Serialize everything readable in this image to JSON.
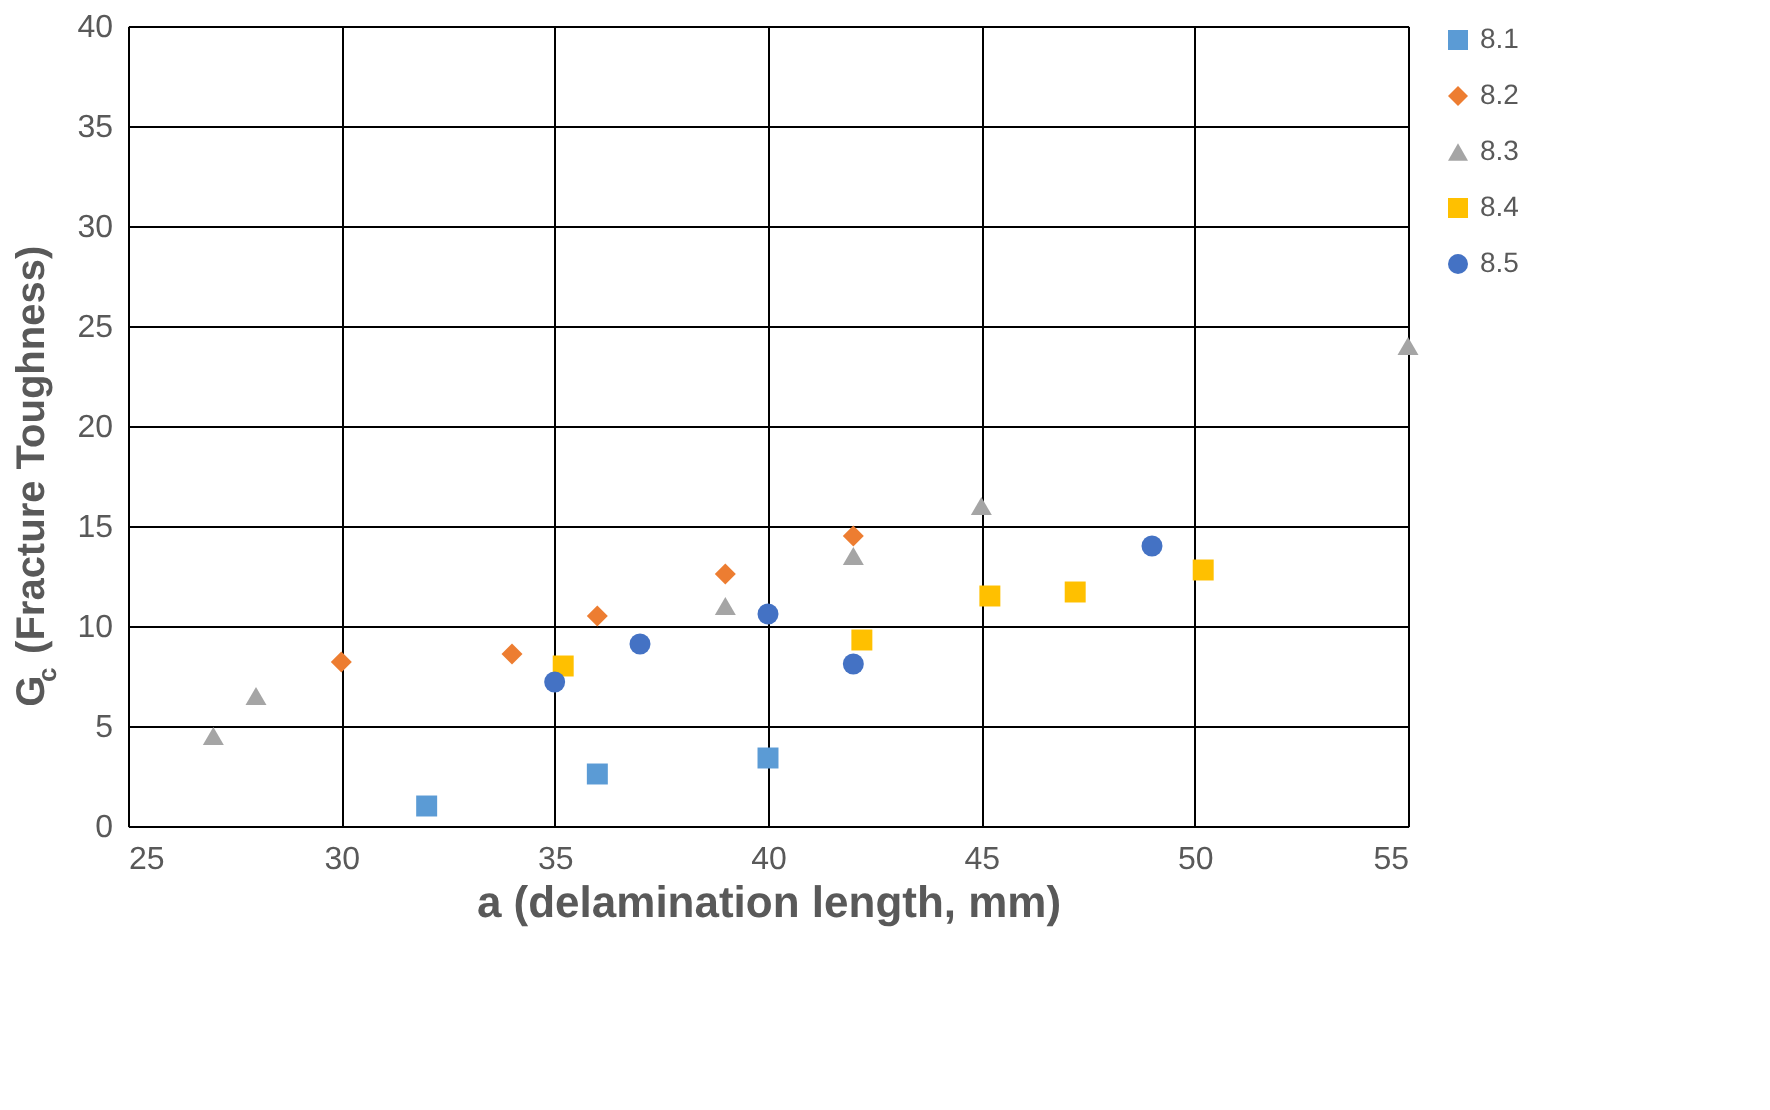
{
  "chart_data": {
    "type": "scatter",
    "xlabel": "a (delamination length, mm)",
    "ylabel": "G$_{c}$ (Fracture Toughness)",
    "xlim": [
      25,
      55
    ],
    "xticks": [
      25,
      30,
      35,
      40,
      45,
      50,
      55
    ],
    "ylim": [
      0,
      40
    ],
    "yticks": [
      0,
      5,
      10,
      15,
      20,
      25,
      30,
      35,
      40
    ],
    "grid": true,
    "legend": "right",
    "series": [
      {
        "name": "8.1",
        "color": "#5b9bd5",
        "marker": "square",
        "x": [
          32,
          36,
          40
        ],
        "values": [
          1.0,
          2.6,
          3.4
        ]
      },
      {
        "name": "8.2",
        "color": "#ed7d31",
        "marker": "diamond",
        "x": [
          30,
          34,
          36,
          39,
          42
        ],
        "values": [
          8.2,
          8.6,
          10.5,
          12.6,
          14.5
        ]
      },
      {
        "name": "8.3",
        "color": "#a5a5a5",
        "marker": "triangle",
        "x": [
          27,
          28,
          39,
          42,
          45,
          55
        ],
        "values": [
          4.5,
          6.5,
          11,
          13.5,
          16,
          24
        ]
      },
      {
        "name": "8.4",
        "color": "#ffc000",
        "marker": "square",
        "x": [
          35.2,
          42.2,
          45.2,
          47.2,
          50.2
        ],
        "values": [
          8.0,
          9.3,
          11.5,
          11.7,
          12.8
        ]
      },
      {
        "name": "8.5",
        "color": "#4472c4",
        "marker": "circle",
        "x": [
          35,
          37,
          40,
          42,
          49
        ],
        "values": [
          7.2,
          9.1,
          10.6,
          8.1,
          14
        ]
      }
    ]
  }
}
